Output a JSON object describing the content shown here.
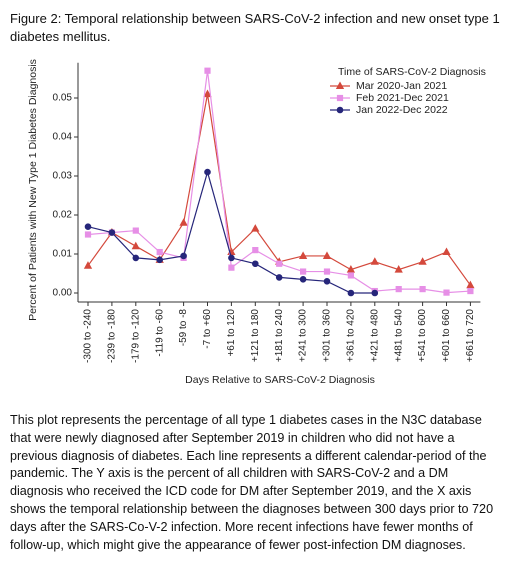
{
  "figure_caption": [
    "Figure 2: Temporal relationship between SARS-CoV-2 infection and new onset type 1",
    "diabetes mellitus."
  ],
  "chart_data": {
    "type": "line",
    "ylabel": "Percent of Patients with New Type 1 Diabetes Diagnosis",
    "xlabel": "Days Relative to SARS-CoV-2 Diagnosis",
    "legend_title": "Time of SARS-CoV-2 Diagnosis",
    "legend_position": "upper right",
    "categories": [
      "-300 to -240",
      "-239 to -180",
      "-179 to -120",
      "-119 to -60",
      "-59 to -8",
      "-7 to +60",
      "+61 to 120",
      "+121 to 180",
      "+181 to 240",
      "+241 to 300",
      "+301 to 360",
      "+361 to 420",
      "+421 to 480",
      "+481 to 540",
      "+541 to 600",
      "+601 to 660",
      "+661 to 720"
    ],
    "series": [
      {
        "name": "Mar 2020-Jan 2021",
        "color": "#d4493c",
        "marker": "triangle",
        "values": [
          0.007,
          0.0155,
          0.012,
          0.0085,
          0.018,
          0.051,
          0.0105,
          0.0165,
          0.008,
          0.0095,
          0.0095,
          0.006,
          0.008,
          0.006,
          0.008,
          0.0105,
          0.002
        ]
      },
      {
        "name": "Feb 2021-Dec 2021",
        "color": "#e68fe6",
        "marker": "square",
        "values": [
          0.015,
          0.0155,
          0.016,
          0.0105,
          0.009,
          0.057,
          0.0065,
          0.011,
          0.0075,
          0.0055,
          0.0055,
          0.0045,
          0.0005,
          0.001,
          0.001,
          0.0001,
          0.0005
        ]
      },
      {
        "name": "Jan 2022-Dec 2022",
        "color": "#26267a",
        "marker": "circle",
        "values": [
          0.017,
          0.0155,
          0.009,
          0.0085,
          0.0095,
          0.031,
          0.009,
          0.0075,
          0.004,
          0.0035,
          0.003,
          0.0,
          0.0,
          null,
          null,
          null,
          null
        ]
      }
    ],
    "ylim": [
      -0.002,
      0.058
    ],
    "yticks": [
      {
        "value": 0,
        "label": "0.00"
      },
      {
        "value": 0.01,
        "label": "0.01"
      },
      {
        "value": 0.02,
        "label": "0.02"
      },
      {
        "value": 0.03,
        "label": "0.03"
      },
      {
        "value": 0.04,
        "label": "0.04"
      },
      {
        "value": 0.05,
        "label": "0.05"
      }
    ],
    "grid": false
  },
  "body_text": [
    "This plot represents the percentage of all type 1 diabetes cases in the N3C database",
    "that were newly diagnosed after September 2019 in children who did not have a",
    "previous diagnosis of diabetes. Each line represents a different calendar-period of the",
    "pandemic. The Y axis is the percent of all children with SARS-CoV-2 and a DM",
    "diagnosis who received the ICD code for DM after September 2019, and the X axis",
    "shows the temporal relationship between the diagnoses between 300 days prior to 720",
    "days after the SARS-Co-V-2 infection. More recent infections have fewer months of",
    "follow-up, which might give the appearance of fewer post-infection DM diagnoses."
  ]
}
